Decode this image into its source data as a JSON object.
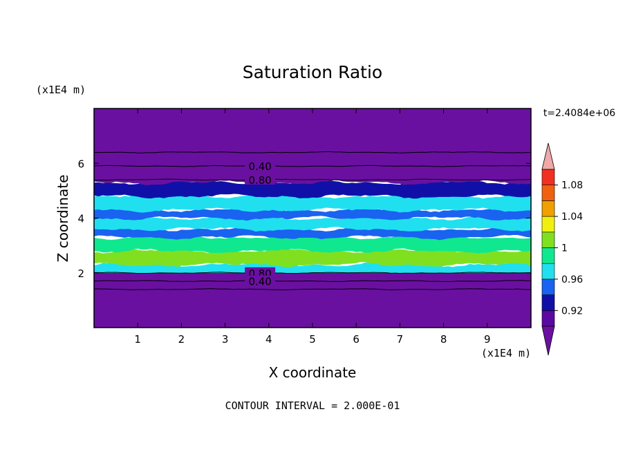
{
  "chart_data": {
    "type": "heatmap",
    "title": "Saturation Ratio",
    "xlabel": "X coordinate",
    "ylabel": "Z coordinate",
    "x_unit": "(x1E4 m)",
    "z_unit": "(x1E4 m)",
    "time_label": "t=2.4084e+06",
    "footer": "CONTOUR INTERVAL = 2.000E-01",
    "xlim": [
      0,
      10
    ],
    "ylim": [
      0,
      8
    ],
    "x_ticks": [
      1,
      2,
      3,
      4,
      5,
      6,
      7,
      8,
      9
    ],
    "y_ticks": [
      2,
      4,
      6
    ],
    "colorbar": {
      "levels": [
        0.92,
        0.96,
        1,
        1.04,
        1.08
      ],
      "label_text": [
        "0.92",
        "0.96",
        "1",
        "1.04",
        "1.08"
      ],
      "bands": [
        "#5a0aa0",
        "#1010a8",
        "#1a62f0",
        "#20e0f0",
        "#10e890",
        "#80e020",
        "#f0f010",
        "#f0a000",
        "#f06010",
        "#f03020"
      ],
      "over_color": "#f0a8a8",
      "under_color": "#6a10a0"
    },
    "layers": [
      {
        "z_bottom": 0,
        "z_top": 2.0,
        "color": "#6a10a0"
      },
      {
        "z_bottom": 2.0,
        "z_top": 2.3,
        "color": "#20e0f0"
      },
      {
        "z_bottom": 2.3,
        "z_top": 2.8,
        "color": "#80e020"
      },
      {
        "z_bottom": 2.8,
        "z_top": 3.3,
        "color": "#10e890"
      },
      {
        "z_bottom": 3.3,
        "z_top": 3.6,
        "color": "#1a62f0"
      },
      {
        "z_bottom": 3.6,
        "z_top": 4.0,
        "color": "#20e0f0"
      },
      {
        "z_bottom": 4.0,
        "z_top": 4.3,
        "color": "#1a62f0"
      },
      {
        "z_bottom": 4.3,
        "z_top": 4.8,
        "color": "#20e0f0"
      },
      {
        "z_bottom": 4.8,
        "z_top": 5.3,
        "color": "#1010a8"
      },
      {
        "z_bottom": 5.3,
        "z_top": 8.0,
        "color": "#6a10a0"
      }
    ],
    "contours": [
      {
        "z": 6.4,
        "label": ""
      },
      {
        "z": 5.9,
        "label": "0.40"
      },
      {
        "z": 5.4,
        "label": "0.80"
      },
      {
        "z": 2.0,
        "label": "0.80"
      },
      {
        "z": 1.7,
        "label": "0.40"
      },
      {
        "z": 1.4,
        "label": ""
      }
    ]
  }
}
